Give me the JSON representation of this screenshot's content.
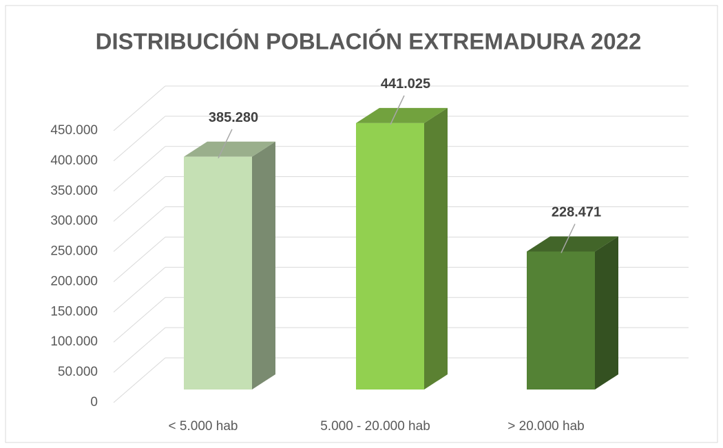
{
  "chart_data": {
    "type": "bar3d",
    "title": "DISTRIBUCIÓN POBLACIÓN EXTREMADURA 2022",
    "categories": [
      "< 5.000 hab",
      "5.000 - 20.000 hab",
      "> 20.000 hab"
    ],
    "values": [
      385280,
      441025,
      228471
    ],
    "value_labels": [
      "385.280",
      "441.025",
      "228.471"
    ],
    "colors": [
      "#c5e0b4",
      "#92d050",
      "#548235"
    ],
    "ylim": [
      0,
      450000
    ],
    "yticks": [
      0,
      {
        "value": 50000,
        "label": "50.000"
      },
      {
        "value": 100000,
        "label": "100.000"
      },
      {
        "value": 150000,
        "label": "150.000"
      },
      {
        "value": 200000,
        "label": "200.000"
      },
      {
        "value": 250000,
        "label": "250.000"
      },
      {
        "value": 300000,
        "label": "300.000"
      },
      {
        "value": 350000,
        "label": "350.000"
      },
      {
        "value": 400000,
        "label": "400.000"
      },
      {
        "value": 450000,
        "label": "450.000"
      }
    ],
    "grid": true
  }
}
